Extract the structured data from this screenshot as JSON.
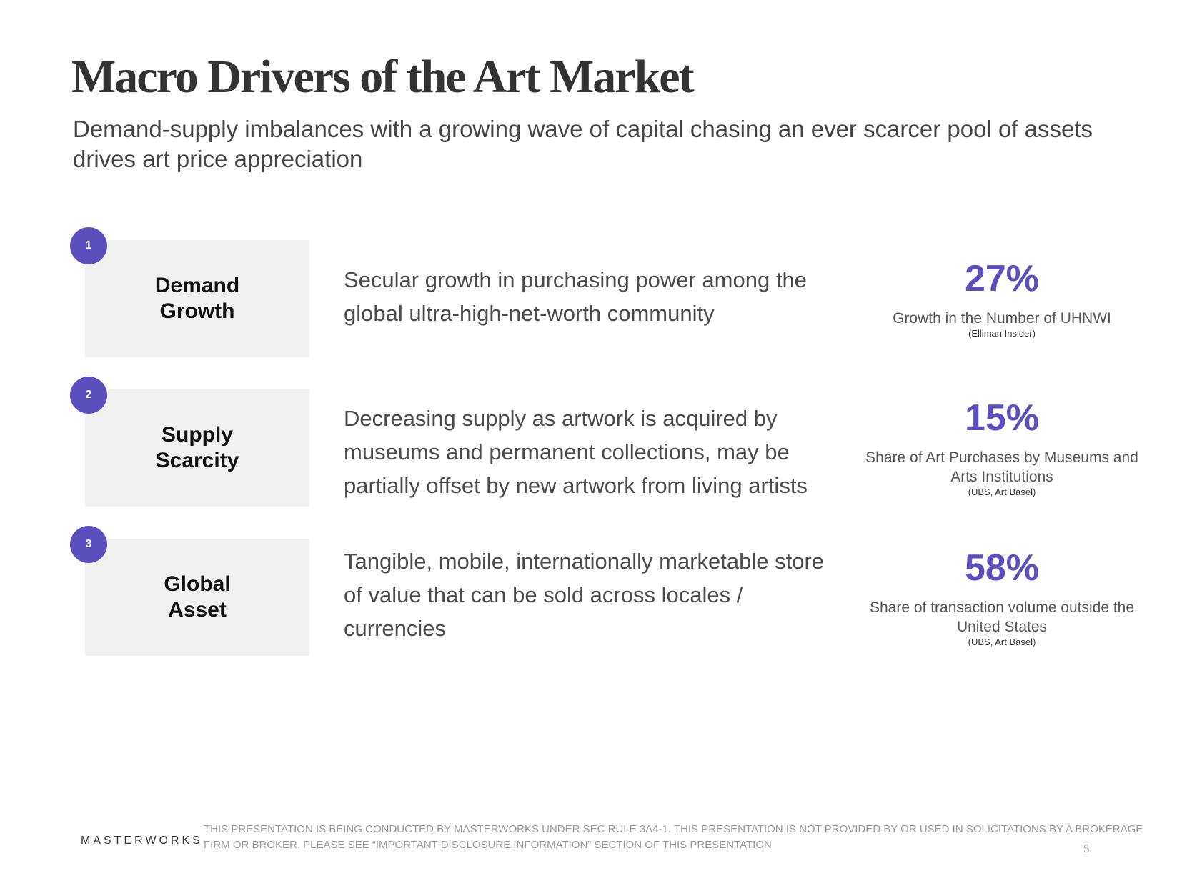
{
  "header": {
    "title": "Macro Drivers of the Art Market",
    "subtitle": "Demand-supply imbalances with a growing wave of capital chasing an ever scarcer pool of assets drives art price appreciation"
  },
  "drivers": [
    {
      "number": "1",
      "label": "Demand Growth",
      "description": "Secular growth in purchasing power among the global ultra-high-net-worth community",
      "stat": "27%",
      "caption": "Growth in the Number of UHNWI",
      "source": "(Elliman Insider)"
    },
    {
      "number": "2",
      "label": "Supply Scarcity",
      "description": "Decreasing supply as artwork is acquired by museums and permanent collections, may be partially offset by new artwork from living artists",
      "stat": "15%",
      "caption": "Share of Art Purchases by Museums and Arts Institutions",
      "source": "(UBS, Art Basel)"
    },
    {
      "number": "3",
      "label": "Global Asset",
      "description": "Tangible, mobile, internationally marketable store of value that can be sold across locales / currencies",
      "stat": "58%",
      "caption": "Share of transaction volume outside the United States",
      "source": "(UBS, Art Basel)"
    }
  ],
  "footer": {
    "logo": "MASTERWORKS",
    "disclaimer": "THIS PRESENTATION  IS BEING CONDUCTED BY MASTERWORKS UNDER SEC RULE 3A4-1. THIS PRESENTATION  IS NOT PROVIDED BY OR USED IN SOLICITATIONS BY A BROKERAGE FIRM OR BROKER. PLEASE SEE “IMPORTANT DISCLOSURE INFORMATION” SECTION OF THIS PRESENTATION",
    "page": "5"
  }
}
